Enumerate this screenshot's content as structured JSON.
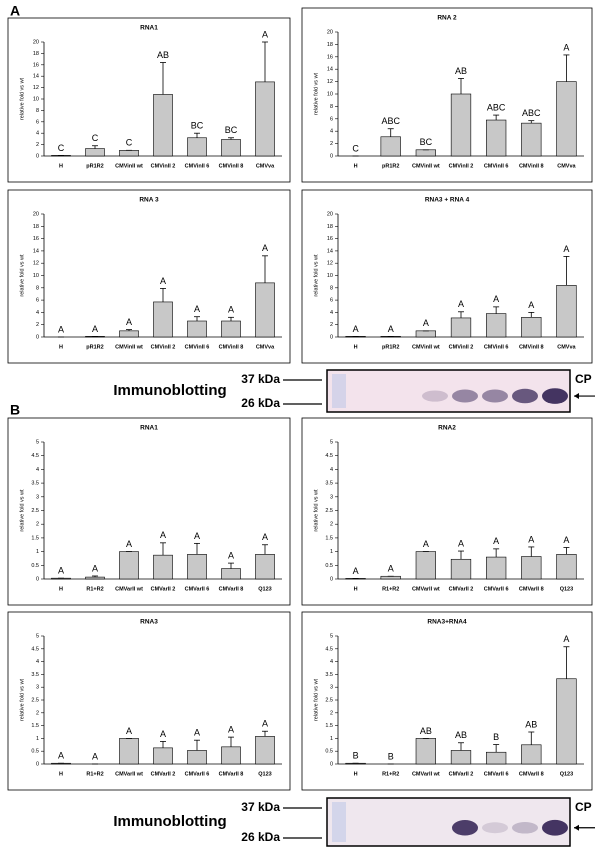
{
  "panel_labels": [
    "A",
    "B"
  ],
  "blots": [
    {
      "label": "Immunoblotting",
      "markers": [
        "37 kDa",
        "26 kDa"
      ],
      "band": "CP"
    },
    {
      "label": "Immunoblotting",
      "markers": [
        "37 kDa",
        "26 kDa"
      ],
      "band": "CP"
    }
  ],
  "chart_data": [
    {
      "type": "bar",
      "title": "RNA1",
      "y_label": "relative fold vs wt",
      "categories": [
        "H",
        "pR1R2",
        "CMVinII wt",
        "CMVinII 2",
        "CMVinII 6",
        "CMVinII 8",
        "CMVva"
      ],
      "values": [
        0.1,
        1.3,
        1.0,
        10.8,
        3.2,
        2.9,
        13.0
      ],
      "errors": [
        0,
        0.5,
        0,
        5.6,
        0.8,
        0.3,
        7.0
      ],
      "letters": [
        "C",
        "C",
        "C",
        "AB",
        "BC",
        "BC",
        "A"
      ],
      "ylim": [
        0,
        20
      ],
      "yticks": [
        0,
        2,
        4,
        6,
        8,
        10,
        12,
        14,
        16,
        18,
        20
      ],
      "color": "#c8c8c8"
    },
    {
      "type": "bar",
      "title": "RNA 2",
      "y_label": "relative fold vs wt",
      "categories": [
        "H",
        "pR1R2",
        "CMVinII wt",
        "CMVinII 2",
        "CMVinII 6",
        "CMVinII 8",
        "CMVva"
      ],
      "values": [
        0,
        3.1,
        1.0,
        10.0,
        5.8,
        5.3,
        12.0
      ],
      "errors": [
        0,
        1.3,
        0,
        2.5,
        0.8,
        0.4,
        4.3
      ],
      "letters": [
        "C",
        "ABC",
        "BC",
        "AB",
        "ABC",
        "ABC",
        "A"
      ],
      "ylim": [
        0,
        20
      ],
      "yticks": [
        0,
        2,
        4,
        6,
        8,
        10,
        12,
        14,
        16,
        18,
        20
      ],
      "color": "#c8c8c8"
    },
    {
      "type": "bar",
      "title": "RNA 3",
      "y_label": "relative fold vs wt",
      "categories": [
        "H",
        "pR1R2",
        "CMVinII wt",
        "CMVinII 2",
        "CMVinII 6",
        "CMVinII 8",
        "CMVva"
      ],
      "values": [
        0,
        0.1,
        1.0,
        5.7,
        2.6,
        2.6,
        8.8
      ],
      "errors": [
        0,
        0,
        0.2,
        2.2,
        0.7,
        0.6,
        4.4
      ],
      "letters": [
        "A",
        "A",
        "A",
        "A",
        "A",
        "A",
        "A"
      ],
      "ylim": [
        0,
        20
      ],
      "yticks": [
        0,
        2,
        4,
        6,
        8,
        10,
        12,
        14,
        16,
        18,
        20
      ],
      "color": "#c8c8c8"
    },
    {
      "type": "bar",
      "title": "RNA3 + RNA 4",
      "y_label": "relative fold vs wt",
      "categories": [
        "H",
        "pR1R2",
        "CMVinII wt",
        "CMVinII 2",
        "CMVinII 6",
        "CMVinII 8",
        "CMVva"
      ],
      "values": [
        0.1,
        0.1,
        1.0,
        3.1,
        3.8,
        3.2,
        8.4
      ],
      "errors": [
        0,
        0,
        0,
        1.0,
        1.1,
        0.8,
        4.7
      ],
      "letters": [
        "A",
        "A",
        "A",
        "A",
        "A",
        "A",
        "A"
      ],
      "ylim": [
        0,
        20
      ],
      "yticks": [
        0,
        2,
        4,
        6,
        8,
        10,
        12,
        14,
        16,
        18,
        20
      ],
      "color": "#c8c8c8"
    },
    {
      "type": "bar",
      "title": "RNA1",
      "y_label": "relative fold vs wt",
      "categories": [
        "H",
        "R1+R2",
        "CMVarII wt",
        "CMVarII 2",
        "CMVarII 6",
        "CMVarII 8",
        "Q123"
      ],
      "values": [
        0.03,
        0.07,
        1.0,
        0.87,
        0.9,
        0.38,
        0.9
      ],
      "errors": [
        0,
        0.04,
        0,
        0.45,
        0.4,
        0.2,
        0.35
      ],
      "letters": [
        "A",
        "A",
        "A",
        "A",
        "A",
        "A",
        "A"
      ],
      "ylim": [
        0,
        5
      ],
      "yticks": [
        0,
        0.5,
        1,
        1.5,
        2,
        2.5,
        3,
        3.5,
        4,
        4.5,
        5
      ],
      "color": "#c8c8c8"
    },
    {
      "type": "bar",
      "title": "RNA2",
      "y_label": "relative fold vs wt",
      "categories": [
        "H",
        "R1+R2",
        "CMVarII wt",
        "CMVarII 2",
        "CMVarII 6",
        "CMVarII 8",
        "Q123"
      ],
      "values": [
        0.02,
        0.1,
        1.0,
        0.72,
        0.8,
        0.82,
        0.9
      ],
      "errors": [
        0,
        0,
        0,
        0.3,
        0.3,
        0.35,
        0.25
      ],
      "letters": [
        "A",
        "A",
        "A",
        "A",
        "A",
        "A",
        "A"
      ],
      "ylim": [
        0,
        5
      ],
      "yticks": [
        0,
        0.5,
        1,
        1.5,
        2,
        2.5,
        3,
        3.5,
        4,
        4.5,
        5
      ],
      "color": "#c8c8c8"
    },
    {
      "type": "bar",
      "title": "RNA3",
      "y_label": "relative fold vs wt",
      "categories": [
        "H",
        "R1+R2",
        "CMVarII wt",
        "CMVarII 2",
        "CMVarII 6",
        "CMVarII 8",
        "Q123"
      ],
      "values": [
        0.03,
        0,
        1.0,
        0.63,
        0.53,
        0.67,
        1.08
      ],
      "errors": [
        0,
        0,
        0,
        0.25,
        0.4,
        0.38,
        0.2
      ],
      "letters": [
        "A",
        "A",
        "A",
        "A",
        "A",
        "A",
        "A"
      ],
      "ylim": [
        0,
        5
      ],
      "yticks": [
        0,
        0.5,
        1,
        1.5,
        2,
        2.5,
        3,
        3.5,
        4,
        4.5,
        5
      ],
      "color": "#c8c8c8"
    },
    {
      "type": "bar",
      "title": "RNA3+RNA4",
      "y_label": "relative fold vs wt",
      "categories": [
        "H",
        "R1+R2",
        "CMVarII wt",
        "CMVarII 2",
        "CMVarII 6",
        "CMVarII 8",
        "Q123"
      ],
      "values": [
        0.03,
        0,
        1.0,
        0.53,
        0.46,
        0.75,
        3.33
      ],
      "errors": [
        0,
        0,
        0,
        0.3,
        0.3,
        0.5,
        1.25
      ],
      "letters": [
        "B",
        "B",
        "AB",
        "AB",
        "B",
        "AB",
        "A"
      ],
      "ylim": [
        0,
        5
      ],
      "yticks": [
        0,
        0.5,
        1,
        1.5,
        2,
        2.5,
        3,
        3.5,
        4,
        4.5,
        5
      ],
      "color": "#c8c8c8"
    }
  ]
}
